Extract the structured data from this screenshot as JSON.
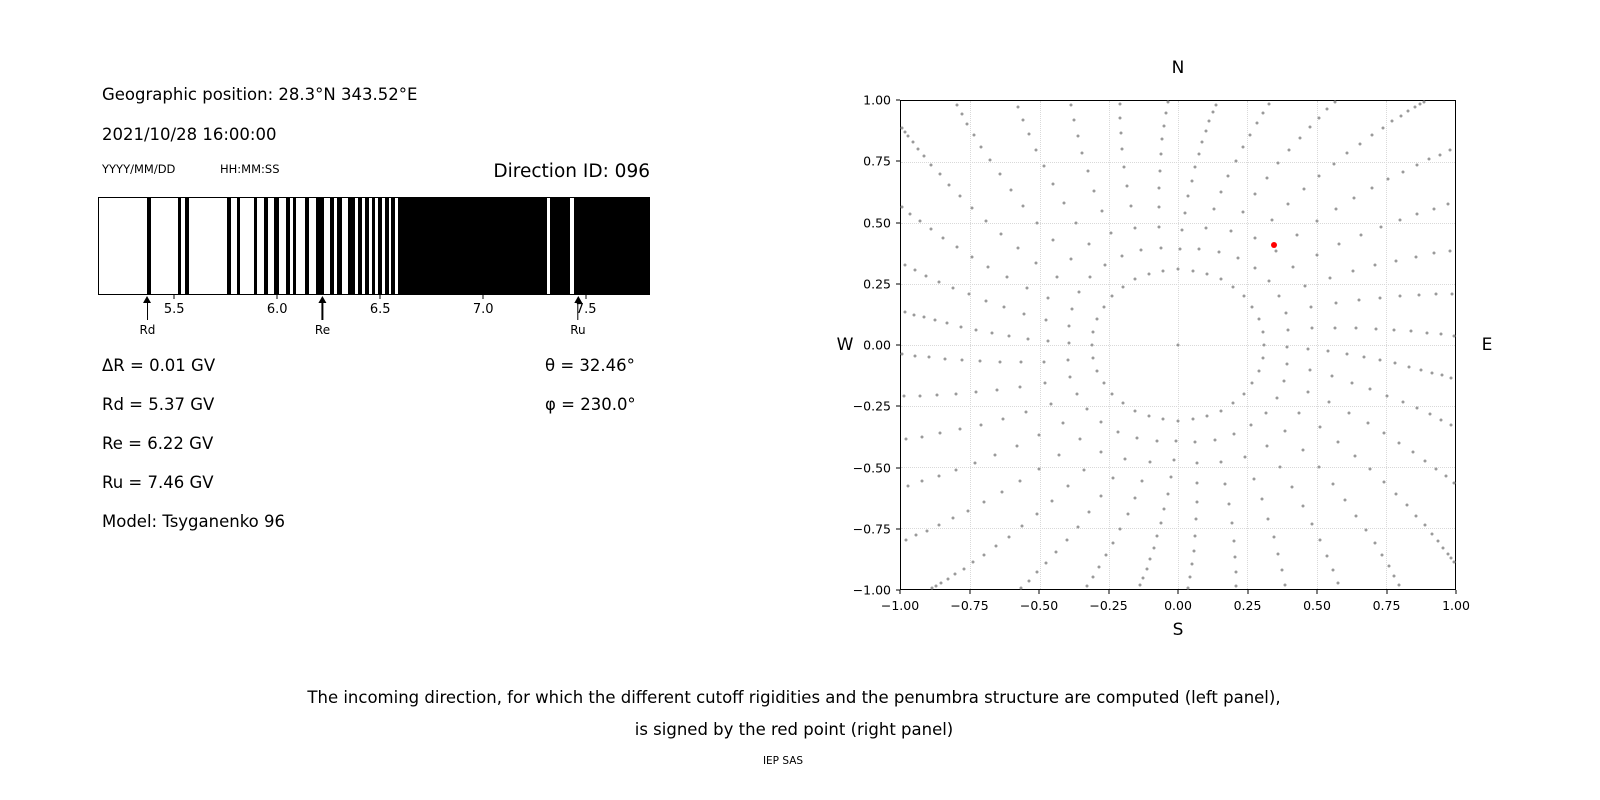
{
  "page": {
    "background": "#ffffff",
    "caption_line1": "The incoming direction, for which the different cutoff rigidities and the penumbra structure are computed (left panel),",
    "caption_line2": "is signed by the red point (right panel)",
    "credit": "IEP SAS"
  },
  "left_panel": {
    "geographic_position": "Geographic position: 28.3°N 343.52°E",
    "datetime": "2021/10/28 16:00:00",
    "date_format_label": "YYYY/MM/DD",
    "time_format_label": "HH:MM:SS",
    "direction_id": "Direction ID: 096",
    "values_left": [
      "ΔR = 0.01 GV",
      "Rd = 5.37 GV",
      "Re = 6.22 GV",
      "Ru = 7.46 GV",
      "Model: Tsyganenko 96"
    ],
    "values_right": [
      "θ = 32.46°",
      "φ = 230.0°"
    ]
  },
  "chart_data": [
    {
      "name": "penumbra-structure",
      "type": "bar",
      "xlim": [
        5.13,
        7.81
      ],
      "xtick_values": [
        5.5,
        6.0,
        6.5,
        7.0,
        7.5
      ],
      "xtick_labels": [
        "5.5",
        "6.0",
        "6.5",
        "7.0",
        "7.5"
      ],
      "bar_color": "#000000",
      "background": "#ffffff",
      "forbidden_bands_gv": [
        [
          5.365,
          5.385
        ],
        [
          5.515,
          5.53
        ],
        [
          5.55,
          5.57
        ],
        [
          5.755,
          5.775
        ],
        [
          5.8,
          5.815
        ],
        [
          5.885,
          5.9
        ],
        [
          5.935,
          5.955
        ],
        [
          5.985,
          6.005
        ],
        [
          6.04,
          6.06
        ],
        [
          6.075,
          6.09
        ],
        [
          6.135,
          6.155
        ],
        [
          6.185,
          6.225
        ],
        [
          6.255,
          6.275
        ],
        [
          6.29,
          6.315
        ],
        [
          6.345,
          6.375
        ],
        [
          6.39,
          6.41
        ],
        [
          6.425,
          6.445
        ],
        [
          6.46,
          6.475
        ],
        [
          6.49,
          6.51
        ],
        [
          6.525,
          6.545
        ],
        [
          6.555,
          6.57
        ],
        [
          6.585,
          7.315
        ],
        [
          7.33,
          7.425
        ],
        [
          7.443,
          7.81
        ]
      ],
      "annotations": [
        {
          "label": "Rd",
          "x_gv": 5.37
        },
        {
          "label": "Re",
          "x_gv": 6.22
        },
        {
          "label": "Ru",
          "x_gv": 7.46
        }
      ]
    },
    {
      "name": "incoming-direction-sky-map",
      "type": "scatter",
      "xlim": [
        -1.0,
        1.0
      ],
      "ylim": [
        -1.0,
        1.0
      ],
      "xtick_values": [
        -1.0,
        -0.75,
        -0.5,
        -0.25,
        0.0,
        0.25,
        0.5,
        0.75,
        1.0
      ],
      "xtick_labels": [
        "−1.00",
        "−0.75",
        "−0.50",
        "−0.25",
        "0.00",
        "0.25",
        "0.50",
        "0.75",
        "1.00"
      ],
      "ytick_values": [
        1.0,
        0.75,
        0.5,
        0.25,
        0.0,
        -0.25,
        -0.5,
        -0.75,
        -1.0
      ],
      "ytick_labels": [
        "1.00",
        "0.75",
        "0.50",
        "0.25",
        "0.00",
        "−0.25",
        "−0.50",
        "−0.75",
        "−1.00"
      ],
      "compass": {
        "top": "N",
        "bottom": "S",
        "left": "W",
        "right": "E"
      },
      "grid": true,
      "grid_style": "dotted",
      "red_point": {
        "x": 0.345,
        "y": 0.41,
        "color": "#ff0000"
      },
      "gray_dots": {
        "color": "#9a9a9a",
        "pattern": "radial-spokes",
        "center_dot": [
          0.0,
          0.0
        ],
        "n_azimuths": 36,
        "dots_per_spoke": 22,
        "r_inner": 0.31,
        "r_outer_base": 1.12,
        "r_outer_diag_boost": 0.28,
        "twist_rad": 0.2,
        "ease_power": 2.2,
        "clip": 1.0
      }
    }
  ]
}
